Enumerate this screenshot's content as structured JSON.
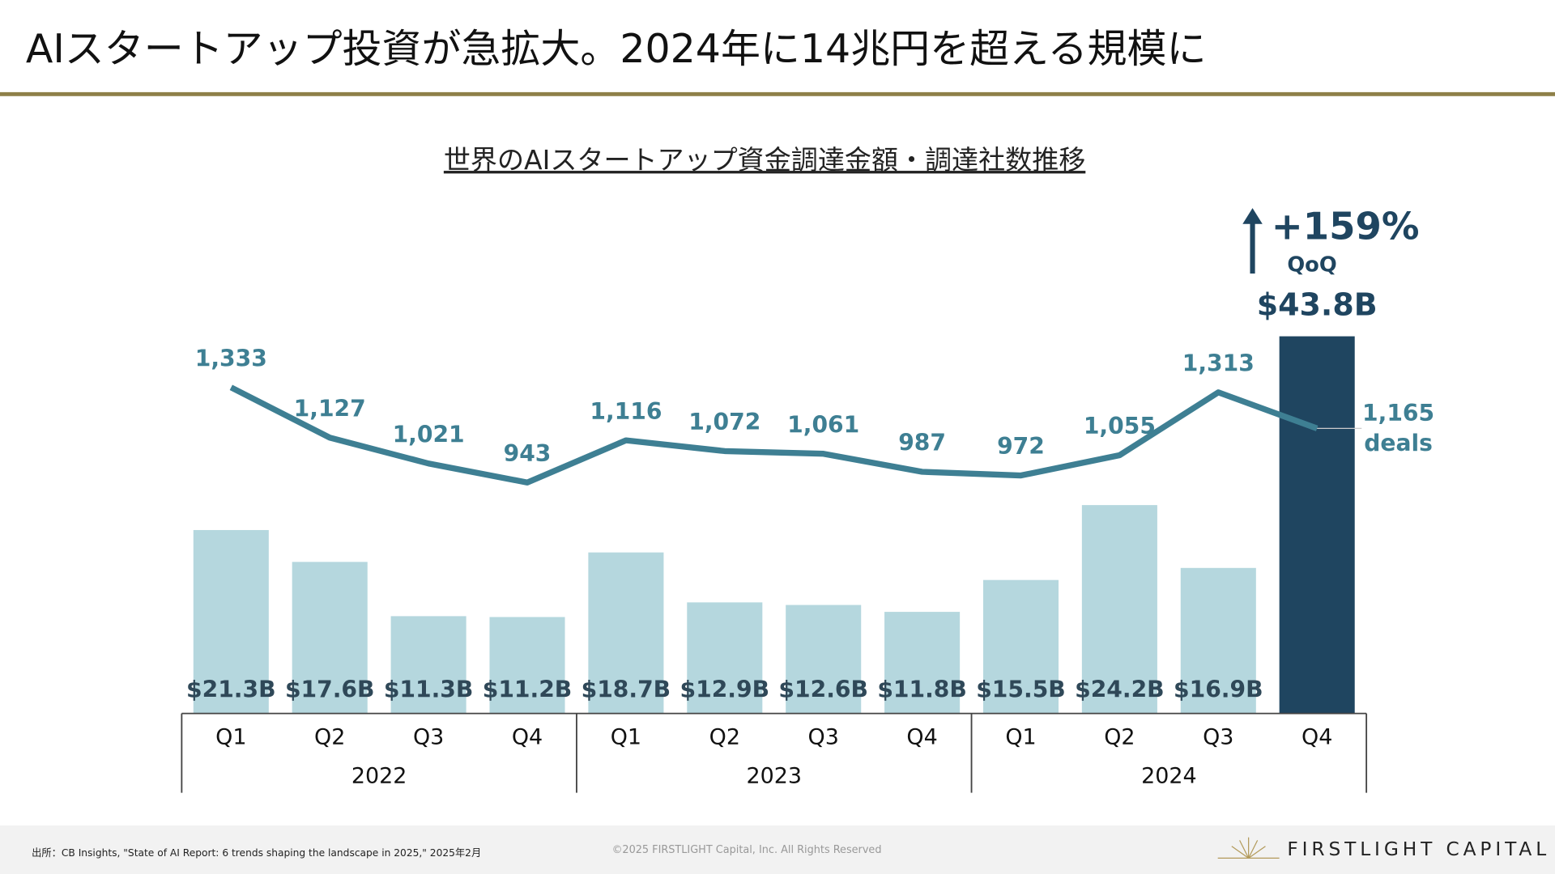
{
  "header": {
    "title": "AIスタートアップ投資が急拡大。2024年に14兆円を超える規模に"
  },
  "chart_data": {
    "type": "bar",
    "title": "世界のAIスタートアップ資金調達金額・調達社数推移",
    "categories": [
      "Q1",
      "Q2",
      "Q3",
      "Q4",
      "Q1",
      "Q2",
      "Q3",
      "Q4",
      "Q1",
      "Q2",
      "Q3",
      "Q4"
    ],
    "groups": [
      "2022",
      "2023",
      "2024"
    ],
    "series": [
      {
        "type": "bar",
        "color": "#b5d7de",
        "colors": [
          "#b5d7de",
          "#b5d7de",
          "#b5d7de",
          "#b5d7de",
          "#b5d7de",
          "#b5d7de",
          "#b5d7de",
          "#b5d7de",
          "#b5d7de",
          "#b5d7de",
          "#b5d7de",
          "#1f4560"
        ],
        "values": [
          21.3,
          17.6,
          11.3,
          11.2,
          18.7,
          12.9,
          12.6,
          11.8,
          15.5,
          24.2,
          16.9,
          43.8
        ],
        "value_labels": [
          "$21.3B",
          "$17.6B",
          "$11.3B",
          "$11.2B",
          "$18.7B",
          "$12.9B",
          "$12.6B",
          "$11.8B",
          "$15.5B",
          "$24.2B",
          "$16.9B",
          "$43.8B"
        ]
      },
      {
        "type": "line",
        "color": "#3e7f93",
        "values": [
          1333,
          1127,
          1021,
          943,
          1116,
          1072,
          1061,
          987,
          972,
          1055,
          1313,
          1165
        ],
        "value_labels": [
          "1,333",
          "1,127",
          "1,021",
          "943",
          "1,116",
          "1,072",
          "1,061",
          "987",
          "972",
          "1,055",
          "1,313",
          "1,165"
        ]
      }
    ],
    "annotations": {
      "change": "+159%",
      "change_basis": "QoQ",
      "line_unit": "deals"
    }
  },
  "footer": {
    "source": "出所：CB Insights, \"State of AI Report: 6 trends shaping the landscape in 2025,\" 2025年2月",
    "copyright": "©2025 FIRSTLIGHT Capital, Inc. All Rights Reserved",
    "logo": "FIRSTLIGHT CAPITAL"
  }
}
